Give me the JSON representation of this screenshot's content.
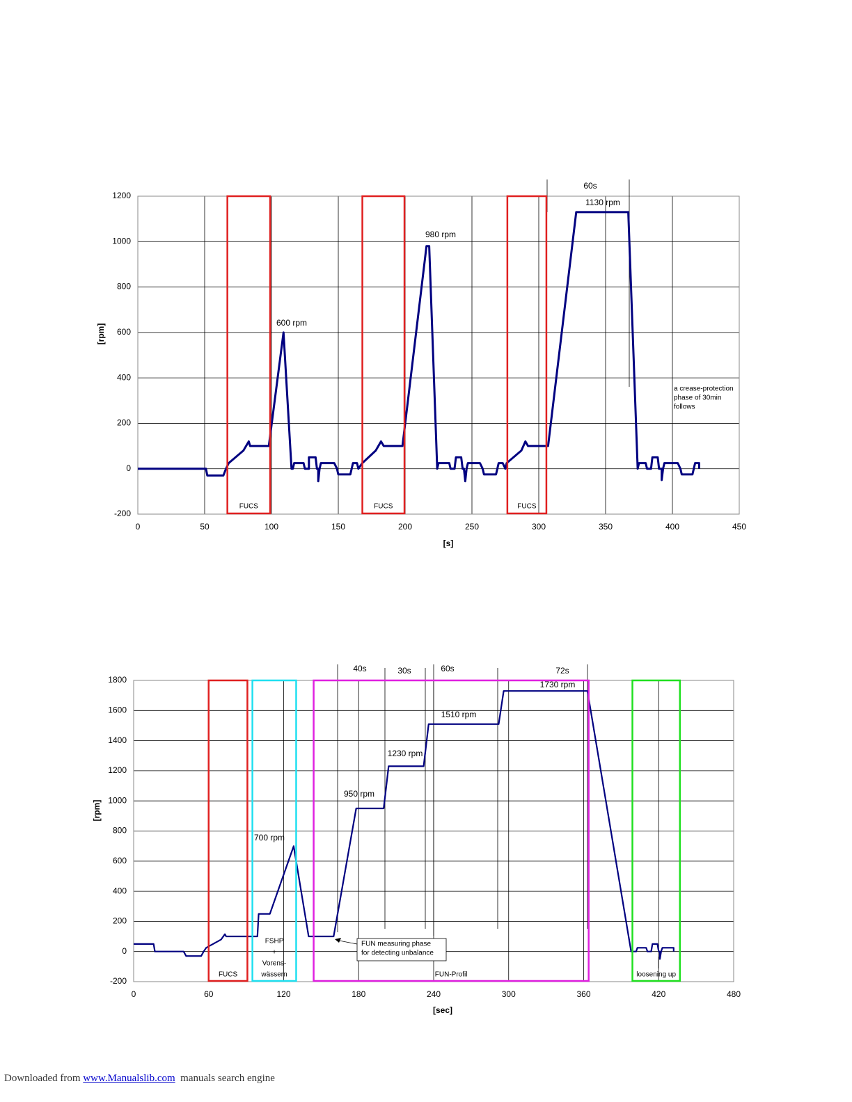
{
  "chart_data": [
    {
      "type": "line",
      "x_label": "[s]",
      "y_label": "[rpm]",
      "xlim": [
        0,
        450
      ],
      "xticks": [
        0,
        50,
        100,
        150,
        200,
        250,
        300,
        350,
        400,
        450
      ],
      "ylim": [
        -200,
        1200
      ],
      "yticks": [
        -200,
        0,
        200,
        400,
        600,
        800,
        1000,
        1200
      ],
      "grid": true,
      "color": "#000080",
      "x": [
        0,
        51,
        52,
        64,
        66,
        68,
        79,
        83,
        84,
        98,
        109,
        115,
        116,
        117,
        124,
        125,
        128,
        128,
        133,
        134,
        135,
        135,
        136,
        137,
        147,
        149,
        150,
        159,
        161,
        164,
        165,
        168,
        178,
        182,
        184,
        198,
        216,
        218,
        224,
        225,
        233,
        234,
        237,
        238,
        242,
        243,
        244,
        245,
        246,
        247,
        256,
        258,
        259,
        268,
        270,
        273,
        275,
        276,
        287,
        290,
        292,
        307,
        328,
        367,
        374,
        375,
        380,
        381,
        384,
        385,
        389,
        390,
        392,
        392,
        393,
        394,
        404,
        406,
        407,
        415,
        417,
        420,
        420
      ],
      "values": [
        0,
        0,
        -30,
        -30,
        0,
        25,
        80,
        120,
        100,
        100,
        600,
        0,
        0,
        25,
        25,
        0,
        0,
        50,
        50,
        0,
        0,
        -55,
        0,
        25,
        25,
        0,
        -25,
        -25,
        25,
        25,
        0,
        25,
        80,
        120,
        100,
        100,
        980,
        980,
        0,
        25,
        25,
        0,
        0,
        50,
        50,
        0,
        0,
        -55,
        0,
        25,
        25,
        0,
        -25,
        -25,
        25,
        25,
        0,
        25,
        80,
        120,
        100,
        100,
        1130,
        1130,
        0,
        25,
        25,
        0,
        0,
        50,
        50,
        0,
        0,
        -50,
        0,
        25,
        25,
        0,
        -25,
        -25,
        25,
        25,
        0
      ],
      "regions": [
        {
          "label": [
            "FUCS"
          ],
          "xlim": [
            67,
            99
          ],
          "color": "#e02020",
          "label_color": "#000000"
        },
        {
          "label": [
            "FUCS"
          ],
          "xlim": [
            168,
            199.5
          ],
          "color": "#e02020",
          "label_color": "#000000"
        },
        {
          "label": [
            "FUCS"
          ],
          "xlim": [
            276.5,
            305.7
          ],
          "color": "#e02020",
          "label_color": "#000000"
        }
      ],
      "annotations": [
        "600 rpm",
        "980 rpm",
        "1130 rpm",
        "60s",
        "a crease-protection",
        "phase of 30min",
        "follows"
      ]
    },
    {
      "type": "line",
      "x_label": "[sec]",
      "y_label": "[rpm]",
      "xlim": [
        0,
        480
      ],
      "xticks": [
        0,
        60,
        120,
        180,
        240,
        300,
        360,
        420,
        480
      ],
      "ylim": [
        -200,
        1800
      ],
      "yticks": [
        -200,
        0,
        200,
        400,
        600,
        800,
        1000,
        1200,
        1400,
        1600,
        1800
      ],
      "grid": true,
      "color": "#000080",
      "x": [
        0,
        16,
        17,
        40,
        42,
        54,
        56,
        58,
        70,
        73,
        74,
        99,
        100,
        109,
        128,
        140,
        160,
        178,
        200,
        204,
        232,
        236,
        292,
        296,
        363,
        398,
        402,
        403,
        410,
        411,
        414,
        415,
        419,
        420,
        421,
        421,
        422,
        423,
        432,
        432
      ],
      "values": [
        50,
        50,
        0,
        0,
        -30,
        -30,
        0,
        25,
        80,
        115,
        100,
        100,
        250,
        250,
        700,
        100,
        100,
        950,
        950,
        1230,
        1230,
        1510,
        1510,
        1730,
        1730,
        0,
        0,
        25,
        25,
        0,
        0,
        50,
        50,
        0,
        0,
        -50,
        0,
        25,
        25,
        0
      ],
      "regions": [
        {
          "label": [
            "FUCS"
          ],
          "xlim": [
            60,
            91
          ],
          "color": "#e02020",
          "label_color": "#e02020"
        },
        {
          "label": [
            "FSHP",
            "+",
            "Vorens-",
            "wässern"
          ],
          "xlim": [
            95,
            130
          ],
          "color": "#20e0f0",
          "label_color": "#20e0f0"
        },
        {
          "label": [
            "FUN-Profil"
          ],
          "xlim": [
            144,
            364
          ],
          "color": "#e020e0",
          "label_color": "#e020e0"
        },
        {
          "label": [
            "loosening up"
          ],
          "xlim": [
            399,
            437
          ],
          "color": "#20e020",
          "label_color": "#000000"
        }
      ],
      "annotations": [
        "40s",
        "30s",
        "60s",
        "72s",
        "1730 rpm",
        "1510 rpm",
        "1230 rpm",
        "950 rpm",
        "700 rpm",
        "FUN measuring phase",
        "for detecting unbalance"
      ]
    }
  ],
  "footer": {
    "prefix": "Downloaded from ",
    "link": "www.Manualslib.com",
    "suffix": "  manuals search engine"
  }
}
